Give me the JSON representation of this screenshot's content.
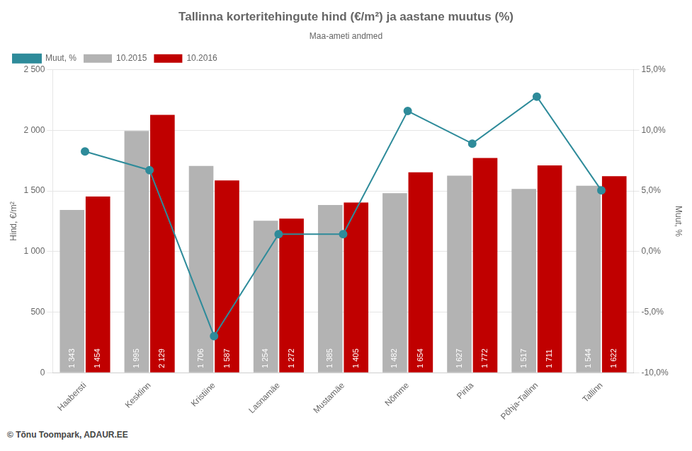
{
  "chart_data": {
    "type": "bar",
    "title": "Tallinna korteritehingute hind (€/m²) ja aastane muutus (%)",
    "subtitle": "Maa-ameti andmed",
    "ylabel": "Hind, €/m²",
    "y2label": "Muut, %",
    "annotations": [
      "© Tõnu Toompark, ADAUR.EE"
    ],
    "categories": [
      "Haabersti",
      "Kesklinn",
      "Kristiine",
      "Lasnamäe",
      "Mustamäe",
      "Nõmme",
      "Pirita",
      "Põhja-Tallinn",
      "Tallinn"
    ],
    "series": [
      {
        "name": "10.2015",
        "color": "#b3b3b3",
        "data_labels": true,
        "values": [
          1343,
          1995,
          1706,
          1254,
          1385,
          1482,
          1627,
          1517,
          1544
        ],
        "value_labels": [
          "1 343",
          "1 995",
          "1 706",
          "1 254",
          "1 385",
          "1 482",
          "1 627",
          "1 517",
          "1 544"
        ]
      },
      {
        "name": "10.2016",
        "color": "#c00000",
        "data_labels": true,
        "values": [
          1454,
          2129,
          1587,
          1272,
          1405,
          1654,
          1772,
          1711,
          1622
        ],
        "value_labels": [
          "1 454",
          "2 129",
          "1 587",
          "1 272",
          "1 405",
          "1 654",
          "1 772",
          "1 711",
          "1 622"
        ]
      },
      {
        "name": "Muut, %",
        "type": "line",
        "axis": "y2",
        "color": "#2e8b9a",
        "marker": "circle",
        "values": [
          8.26,
          6.72,
          -6.98,
          1.44,
          1.44,
          11.6,
          8.91,
          12.79,
          5.05
        ]
      }
    ],
    "ylim": [
      0,
      2500
    ],
    "yticks": [
      0,
      500,
      {
        "value": 1000,
        "label": "1 000"
      },
      {
        "value": 1500,
        "label": "1 500"
      },
      {
        "value": 2000,
        "label": "2 000"
      },
      {
        "value": 2500,
        "label": "2 500"
      }
    ],
    "y2lim": [
      -10.0,
      15.0
    ],
    "y2ticks": [
      {
        "value": -10.0,
        "label": "-10,0%"
      },
      {
        "value": -5.0,
        "label": "-5,0%"
      },
      {
        "value": 0.0,
        "label": "0,0%"
      },
      {
        "value": 5.0,
        "label": "5,0%"
      },
      {
        "value": 10.0,
        "label": "10,0%"
      },
      {
        "value": 15.0,
        "label": "15,0%"
      }
    ],
    "grid": true,
    "legend": "upper left"
  }
}
